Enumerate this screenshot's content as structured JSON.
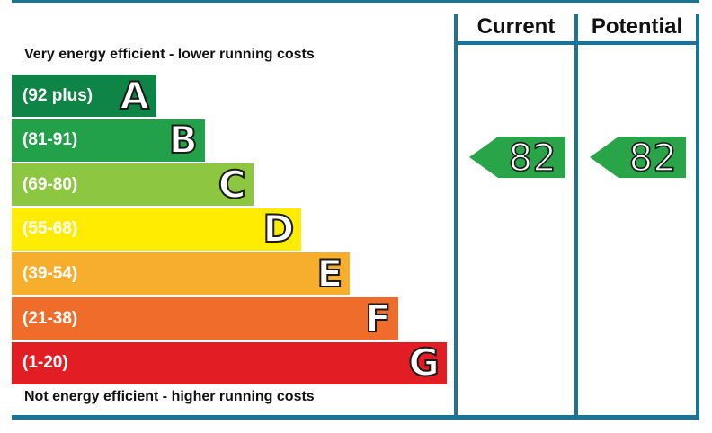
{
  "headers": {
    "current": "Current",
    "potential": "Potential"
  },
  "top_caption": "Very energy efficient - lower running costs",
  "bottom_caption": "Not energy efficient - higher running costs",
  "chart_data": {
    "type": "bar",
    "categories": [
      "A",
      "B",
      "C",
      "D",
      "E",
      "F",
      "G"
    ],
    "bands": [
      {
        "letter": "A",
        "range": "(92 plus)",
        "color": "#0e8446"
      },
      {
        "letter": "B",
        "range": "(81-91)",
        "color": "#22a04a"
      },
      {
        "letter": "C",
        "range": "(69-80)",
        "color": "#8dc640"
      },
      {
        "letter": "D",
        "range": "(55-68)",
        "color": "#ffec00"
      },
      {
        "letter": "E",
        "range": "(39-54)",
        "color": "#f7ae2c"
      },
      {
        "letter": "F",
        "range": "(21-38)",
        "color": "#ef6c2b"
      },
      {
        "letter": "G",
        "range": "(1-20)",
        "color": "#e31d24"
      }
    ],
    "current": {
      "value": "82",
      "band": "B",
      "color": "#2aa449"
    },
    "potential": {
      "value": "82",
      "band": "B",
      "color": "#2aa449"
    }
  }
}
